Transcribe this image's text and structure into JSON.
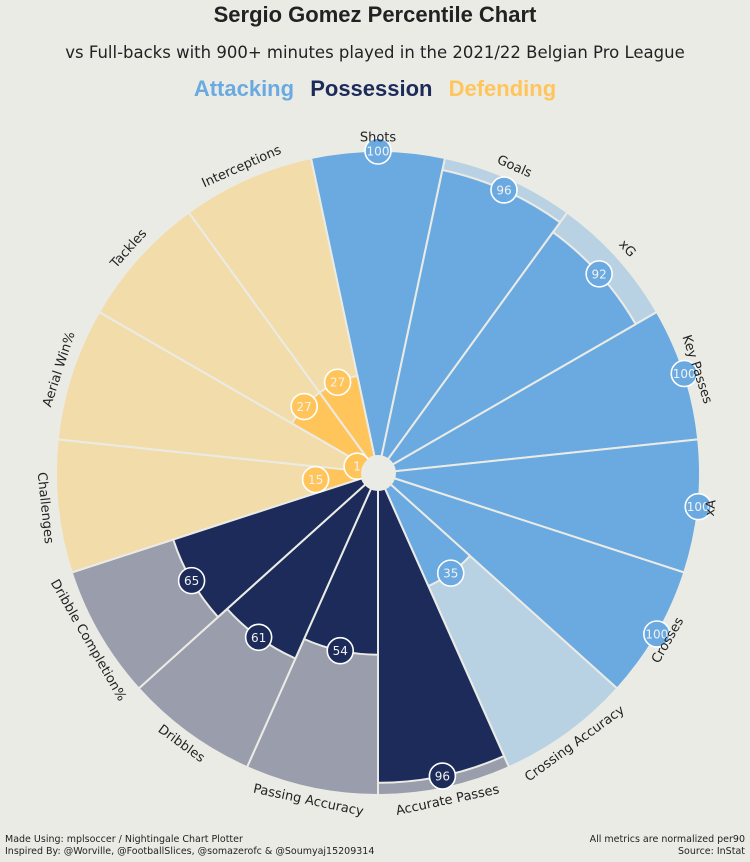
{
  "title": "Sergio Gomez Percentile Chart",
  "subtitle": "vs Full-backs with 900+ minutes played in the 2021/22 Belgian Pro League",
  "legend": [
    {
      "label": "Attacking",
      "color": "#6AAAE0"
    },
    {
      "label": "Possession",
      "color": "#1C2B5A"
    },
    {
      "label": "Defending",
      "color": "#FFC55A"
    }
  ],
  "footer": {
    "left_line1": "Made Using: mplsoccer / Nightingale Chart Plotter",
    "left_line2": "Inspired By: @Worville, @FootballSlices, @somazerofc & @Soumyaj15209314",
    "right_line1": "All metrics are normalized per90",
    "right_line2": "Source: InStat"
  },
  "chart_data": {
    "type": "pie",
    "subtype": "nightingale-percentile",
    "title": "Sergio Gomez Percentile Chart",
    "colors": {
      "attacking": "#6AAAE0",
      "attacking_bg": "#B9D2E3",
      "possession": "#1C2B5A",
      "possession_bg": "#999DAC",
      "defending": "#FFC55A",
      "defending_bg": "#F2DCAA"
    },
    "metrics": [
      {
        "name": "Shots",
        "value": 100,
        "group": "attacking"
      },
      {
        "name": "Goals",
        "value": 96,
        "group": "attacking"
      },
      {
        "name": "xG",
        "value": 92,
        "group": "attacking"
      },
      {
        "name": "Key Passes",
        "value": 100,
        "group": "attacking"
      },
      {
        "name": "xA",
        "value": 100,
        "group": "attacking"
      },
      {
        "name": "Crosses",
        "value": 100,
        "group": "attacking"
      },
      {
        "name": "Crossing Accuracy",
        "value": 35,
        "group": "attacking"
      },
      {
        "name": "Accurate Passes",
        "value": 96,
        "group": "possession"
      },
      {
        "name": "Passing Accuracy",
        "value": 54,
        "group": "possession"
      },
      {
        "name": "Dribbles",
        "value": 61,
        "group": "possession"
      },
      {
        "name": "Dribble Completion%",
        "value": 65,
        "group": "possession"
      },
      {
        "name": "Challenges",
        "value": 15,
        "group": "defending"
      },
      {
        "name": "Aerial Win%",
        "value": 1,
        "group": "defending"
      },
      {
        "name": "Tackles",
        "value": 27,
        "group": "defending"
      },
      {
        "name": "Interceptions",
        "value": 27,
        "group": "defending"
      }
    ],
    "range": [
      0,
      100
    ]
  }
}
